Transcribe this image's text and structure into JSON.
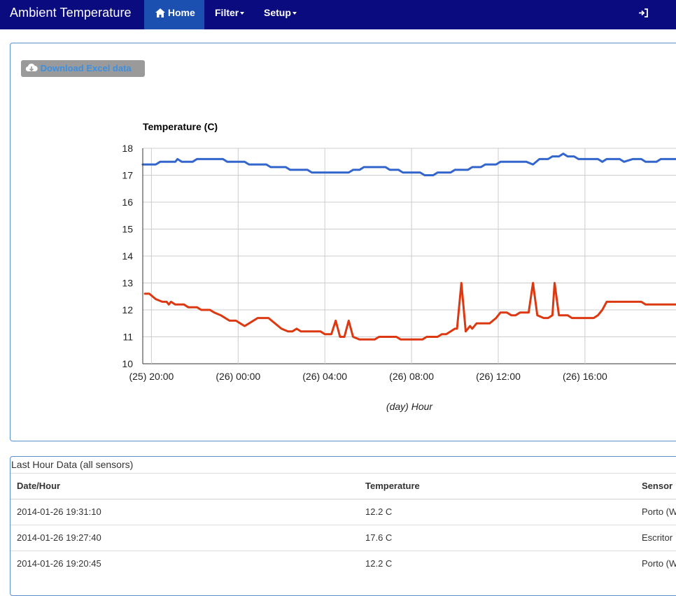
{
  "navbar": {
    "brand": "Ambient Temperature",
    "home_label": "Home",
    "filter_label": "Filter",
    "setup_label": "Setup",
    "login_label": "Login",
    "bg_color": "#0b0b80",
    "active_color": "#1b4fb0"
  },
  "toolbar": {
    "download_label": "Download Excel data",
    "download_icon": "cloud-download-icon"
  },
  "chart_data": {
    "type": "line",
    "title": "Temperature (C)",
    "xlabel": "(day) Hour",
    "ylabel": "",
    "ylim": [
      10,
      18
    ],
    "yticks": [
      "10",
      "11",
      "12",
      "13",
      "14",
      "15",
      "16",
      "17",
      "18"
    ],
    "xrange": [
      19.6,
      44.2
    ],
    "xticks": [
      {
        "label": "(25) 20:00",
        "value": 20
      },
      {
        "label": "(26) 00:00",
        "value": 24
      },
      {
        "label": "(26) 04:00",
        "value": 28
      },
      {
        "label": "(26) 08:00",
        "value": 32
      },
      {
        "label": "(26) 12:00",
        "value": 36
      },
      {
        "label": "(26) 16:00",
        "value": 40
      }
    ],
    "grid": true,
    "series": [
      {
        "color": "#3366cc",
        "points": [
          [
            19.6,
            17.4
          ],
          [
            20.2,
            17.4
          ],
          [
            20.4,
            17.5
          ],
          [
            21.1,
            17.5
          ],
          [
            21.2,
            17.6
          ],
          [
            21.4,
            17.5
          ],
          [
            21.9,
            17.5
          ],
          [
            22.1,
            17.6
          ],
          [
            23.3,
            17.6
          ],
          [
            23.5,
            17.5
          ],
          [
            24.3,
            17.5
          ],
          [
            24.5,
            17.4
          ],
          [
            25.3,
            17.4
          ],
          [
            25.5,
            17.3
          ],
          [
            26.2,
            17.3
          ],
          [
            26.4,
            17.2
          ],
          [
            27.2,
            17.2
          ],
          [
            27.4,
            17.1
          ],
          [
            29.1,
            17.1
          ],
          [
            29.3,
            17.2
          ],
          [
            29.6,
            17.2
          ],
          [
            29.8,
            17.3
          ],
          [
            30.8,
            17.3
          ],
          [
            31.0,
            17.2
          ],
          [
            31.4,
            17.2
          ],
          [
            31.6,
            17.1
          ],
          [
            32.4,
            17.1
          ],
          [
            32.6,
            17.0
          ],
          [
            33.0,
            17.0
          ],
          [
            33.2,
            17.1
          ],
          [
            33.8,
            17.1
          ],
          [
            34.0,
            17.2
          ],
          [
            34.6,
            17.2
          ],
          [
            34.8,
            17.3
          ],
          [
            35.2,
            17.3
          ],
          [
            35.4,
            17.4
          ],
          [
            35.9,
            17.4
          ],
          [
            36.1,
            17.5
          ],
          [
            37.3,
            17.5
          ],
          [
            37.6,
            17.4
          ],
          [
            37.9,
            17.6
          ],
          [
            38.3,
            17.6
          ],
          [
            38.5,
            17.7
          ],
          [
            38.8,
            17.7
          ],
          [
            39.0,
            17.8
          ],
          [
            39.2,
            17.7
          ],
          [
            39.5,
            17.7
          ],
          [
            39.7,
            17.6
          ],
          [
            40.6,
            17.6
          ],
          [
            40.8,
            17.5
          ],
          [
            41.0,
            17.6
          ],
          [
            41.6,
            17.6
          ],
          [
            41.8,
            17.5
          ],
          [
            42.2,
            17.6
          ],
          [
            42.6,
            17.6
          ],
          [
            42.8,
            17.5
          ],
          [
            43.3,
            17.5
          ],
          [
            43.5,
            17.6
          ],
          [
            44.2,
            17.6
          ]
        ]
      },
      {
        "color": "#dc3912",
        "points": [
          [
            19.7,
            12.6
          ],
          [
            19.9,
            12.6
          ],
          [
            20.2,
            12.4
          ],
          [
            20.5,
            12.3
          ],
          [
            20.7,
            12.3
          ],
          [
            20.8,
            12.2
          ],
          [
            20.9,
            12.3
          ],
          [
            21.1,
            12.2
          ],
          [
            21.5,
            12.2
          ],
          [
            21.7,
            12.1
          ],
          [
            22.1,
            12.1
          ],
          [
            22.3,
            12.0
          ],
          [
            22.7,
            12.0
          ],
          [
            22.9,
            11.9
          ],
          [
            23.2,
            11.8
          ],
          [
            23.6,
            11.6
          ],
          [
            23.9,
            11.6
          ],
          [
            24.1,
            11.5
          ],
          [
            24.3,
            11.4
          ],
          [
            24.5,
            11.5
          ],
          [
            24.9,
            11.7
          ],
          [
            25.4,
            11.7
          ],
          [
            25.7,
            11.5
          ],
          [
            26.0,
            11.3
          ],
          [
            26.3,
            11.2
          ],
          [
            26.5,
            11.2
          ],
          [
            26.7,
            11.3
          ],
          [
            26.9,
            11.2
          ],
          [
            27.8,
            11.2
          ],
          [
            28.0,
            11.1
          ],
          [
            28.3,
            11.1
          ],
          [
            28.5,
            11.6
          ],
          [
            28.7,
            11.0
          ],
          [
            28.9,
            11.0
          ],
          [
            29.1,
            11.6
          ],
          [
            29.3,
            11.0
          ],
          [
            29.6,
            10.9
          ],
          [
            30.3,
            10.9
          ],
          [
            30.5,
            11.0
          ],
          [
            31.3,
            11.0
          ],
          [
            31.5,
            10.9
          ],
          [
            32.5,
            10.9
          ],
          [
            32.7,
            11.0
          ],
          [
            33.2,
            11.0
          ],
          [
            33.4,
            11.1
          ],
          [
            33.6,
            11.1
          ],
          [
            33.8,
            11.2
          ],
          [
            34.0,
            11.3
          ],
          [
            34.1,
            11.3
          ],
          [
            34.3,
            13.0
          ],
          [
            34.5,
            11.2
          ],
          [
            34.7,
            11.4
          ],
          [
            34.8,
            11.3
          ],
          [
            35.0,
            11.5
          ],
          [
            35.6,
            11.5
          ],
          [
            35.9,
            11.7
          ],
          [
            36.1,
            11.9
          ],
          [
            36.4,
            11.9
          ],
          [
            36.6,
            11.8
          ],
          [
            36.8,
            11.8
          ],
          [
            37.0,
            11.9
          ],
          [
            37.2,
            11.9
          ],
          [
            37.4,
            11.9
          ],
          [
            37.6,
            13.0
          ],
          [
            37.8,
            11.8
          ],
          [
            38.1,
            11.7
          ],
          [
            38.3,
            11.7
          ],
          [
            38.5,
            11.8
          ],
          [
            38.6,
            13.0
          ],
          [
            38.8,
            11.8
          ],
          [
            39.2,
            11.8
          ],
          [
            39.4,
            11.7
          ],
          [
            40.4,
            11.7
          ],
          [
            40.6,
            11.8
          ],
          [
            40.8,
            12.0
          ],
          [
            41.0,
            12.3
          ],
          [
            42.6,
            12.3
          ],
          [
            42.8,
            12.2
          ],
          [
            44.2,
            12.2
          ]
        ]
      }
    ]
  },
  "table": {
    "title": "Last Hour Data (all sensors)",
    "headers": [
      "Date/Hour",
      "Temperature",
      "Sensor"
    ],
    "rows": [
      [
        "2014-01-26 19:31:10",
        "12.2 C",
        "Porto (W"
      ],
      [
        "2014-01-26 19:27:40",
        "17.6 C",
        "Escritor"
      ],
      [
        "2014-01-26 19:20:45",
        "12.2 C",
        "Porto (W"
      ]
    ]
  }
}
